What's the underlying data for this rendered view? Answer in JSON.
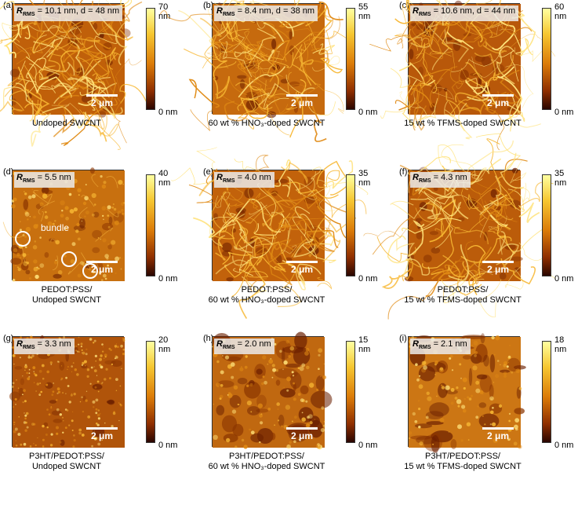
{
  "unit_label": "2 μm",
  "panels": [
    {
      "id": "(a)",
      "rrms": "= 10.1 nm",
      "extra": ", d = 48 nm",
      "cmax": "70 nm",
      "cmin": "0 nm",
      "cap1": "Undoped SWCNT",
      "cap2": ""
    },
    {
      "id": "(b)",
      "rrms": "= 8.4 nm",
      "extra": ", d = 38 nm",
      "cmax": "55 nm",
      "cmin": "0 nm",
      "cap1": "60 wt % HNO₃-doped SWCNT",
      "cap2": ""
    },
    {
      "id": "(c)",
      "rrms": "= 10.6 nm",
      "extra": ", d = 44 nm",
      "cmax": "60 nm",
      "cmin": "0 nm",
      "cap1": "15 wt % TFMS-doped SWCNT",
      "cap2": ""
    },
    {
      "id": "(d)",
      "rrms": "= 5.5 nm",
      "extra": "",
      "cmax": "40 nm",
      "cmin": "0 nm",
      "cap1": "PEDOT:PSS/",
      "cap2": "Undoped SWCNT",
      "annotation": "bundle"
    },
    {
      "id": "(e)",
      "rrms": "= 4.0 nm",
      "extra": "",
      "cmax": "35 nm",
      "cmin": "0 nm",
      "cap1": "PEDOT:PSS/",
      "cap2": "60 wt % HNO₃-doped SWCNT"
    },
    {
      "id": "(f)",
      "rrms": "= 4.3 nm",
      "extra": "",
      "cmax": "35 nm",
      "cmin": "0 nm",
      "cap1": "PEDOT:PSS/",
      "cap2": "15 wt % TFMS-doped SWCNT"
    },
    {
      "id": "(g)",
      "rrms": "= 3.3 nm",
      "extra": "",
      "cmax": "20 nm",
      "cmin": "0 nm",
      "cap1": "P3HT/PEDOT:PSS/",
      "cap2": "Undoped SWCNT"
    },
    {
      "id": "(h)",
      "rrms": "= 2.0 nm",
      "extra": "",
      "cmax": "15 nm",
      "cmin": "0 nm",
      "cap1": "P3HT/PEDOT:PSS/",
      "cap2": "60 wt % HNO₃-doped SWCNT"
    },
    {
      "id": "(i)",
      "rrms": "= 2.1 nm",
      "extra": "",
      "cmax": "18 nm",
      "cmin": "0 nm",
      "cap1": "P3HT/PEDOT:PSS/",
      "cap2": "15 wt % TFMS-doped SWCNT"
    }
  ]
}
